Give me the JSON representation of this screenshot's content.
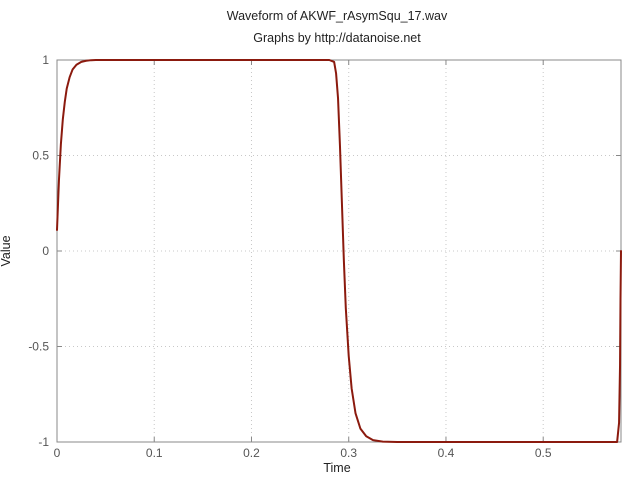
{
  "title": "Waveform of AKWF_rAsymSqu_17.wav",
  "subtitle": "Graphs by http://datanoise.net",
  "chart_data": {
    "type": "line",
    "title": "Waveform of AKWF_rAsymSqu_17.wav",
    "subtitle": "Graphs by http://datanoise.net",
    "xlabel": "Time",
    "ylabel": "Value",
    "xlim": [
      0,
      0.58
    ],
    "ylim": [
      -1,
      1
    ],
    "xticks": [
      0,
      0.1,
      0.2,
      0.3,
      0.4,
      0.5
    ],
    "xtick_labels": [
      "0",
      "0.1",
      "0.2",
      "0.3",
      "0.4",
      "0.5"
    ],
    "yticks": [
      -1,
      -0.5,
      0,
      0.5,
      1
    ],
    "ytick_labels": [
      "-1",
      "-0.5",
      "0",
      "0.5",
      "1"
    ],
    "grid": true,
    "series": [
      {
        "color": "#8b1a0e",
        "x": [
          0,
          0.002,
          0.004,
          0.006,
          0.008,
          0.01,
          0.013,
          0.016,
          0.02,
          0.025,
          0.03,
          0.035,
          0.04,
          0.05,
          0.07,
          0.1,
          0.15,
          0.2,
          0.25,
          0.28,
          0.285,
          0.287,
          0.289,
          0.291,
          0.293,
          0.295,
          0.297,
          0.3,
          0.303,
          0.307,
          0.312,
          0.318,
          0.325,
          0.335,
          0.35,
          0.4,
          0.45,
          0.5,
          0.55,
          0.576,
          0.578,
          0.579,
          0.5795,
          0.58
        ],
        "y": [
          0.11,
          0.37,
          0.56,
          0.69,
          0.78,
          0.85,
          0.91,
          0.95,
          0.975,
          0.99,
          0.996,
          0.999,
          1.0,
          1.0,
          1.0,
          1.0,
          1.0,
          1.0,
          1.0,
          1.0,
          0.99,
          0.93,
          0.8,
          0.55,
          0.25,
          -0.05,
          -0.3,
          -0.55,
          -0.72,
          -0.85,
          -0.93,
          -0.97,
          -0.99,
          -0.998,
          -1.0,
          -1.0,
          -1.0,
          -1.0,
          -1.0,
          -1.0,
          -0.9,
          -0.6,
          -0.25,
          0.0
        ]
      }
    ]
  }
}
